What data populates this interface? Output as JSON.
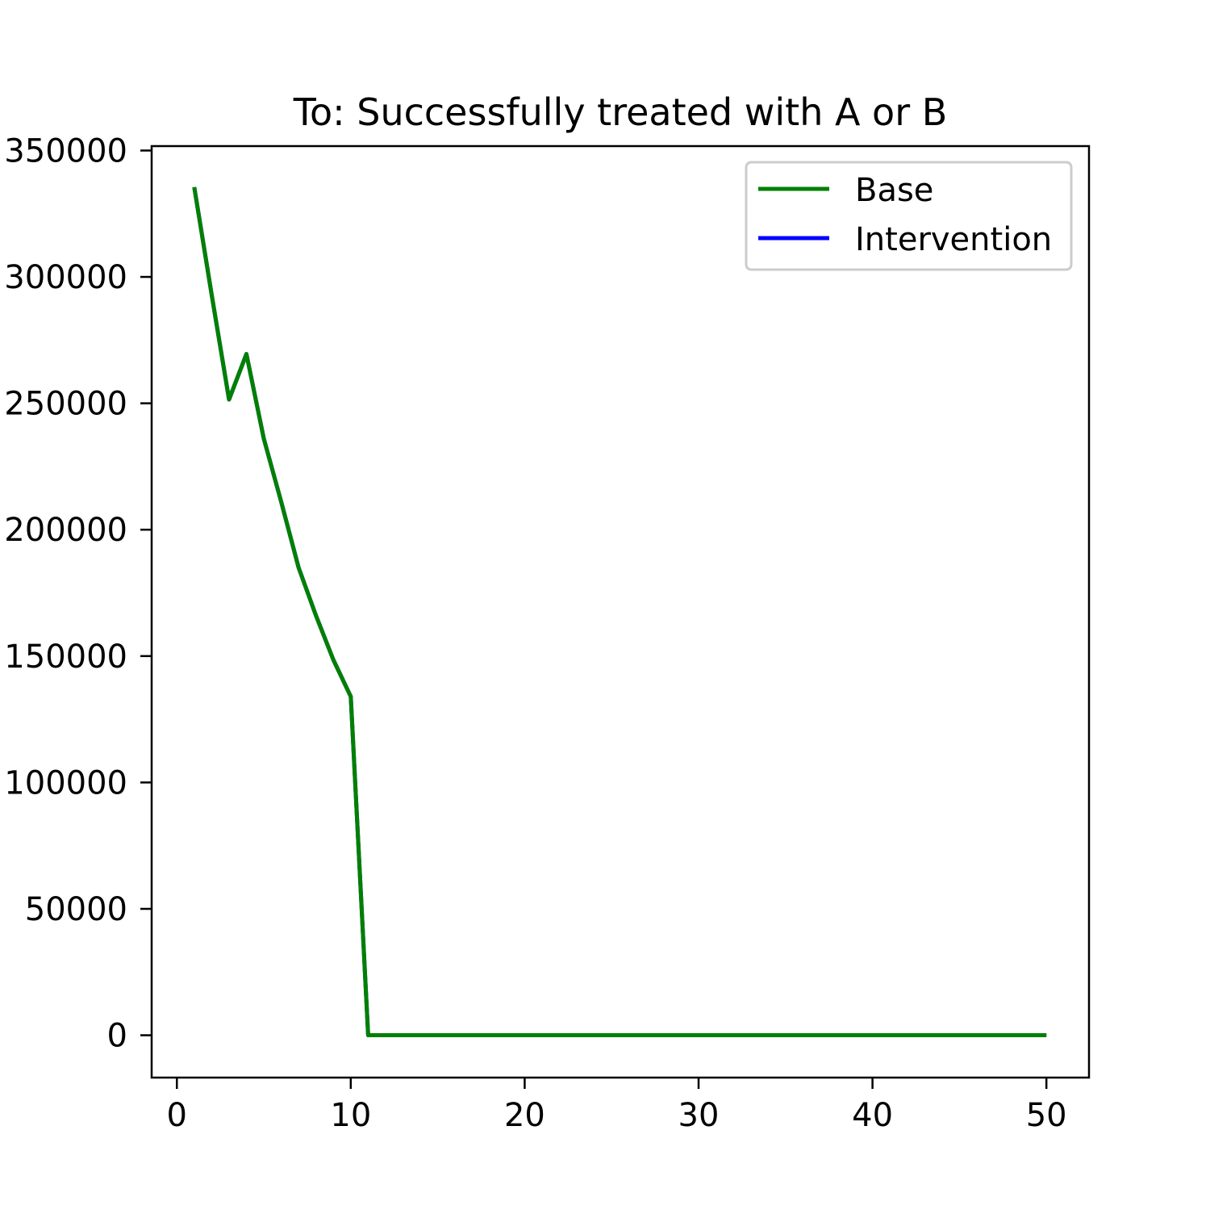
{
  "chart_data": {
    "type": "line",
    "title": "To: Successfully treated with A or B",
    "xlabel": "",
    "ylabel": "",
    "xlim": [
      -1.45,
      52.45
    ],
    "ylim": [
      -16750,
      351750
    ],
    "x_ticks": [
      0,
      10,
      20,
      30,
      40,
      50
    ],
    "y_ticks": [
      0,
      50000,
      100000,
      150000,
      200000,
      250000,
      300000,
      350000
    ],
    "grid": false,
    "legend_position": "top-right",
    "series": [
      {
        "name": "Base",
        "color": "#008000",
        "x": [
          1,
          2,
          3,
          4,
          5,
          6,
          7,
          8,
          9,
          10,
          11,
          12,
          13,
          14,
          15,
          16,
          17,
          18,
          19,
          20,
          21,
          22,
          23,
          24,
          25,
          26,
          27,
          28,
          29,
          30,
          31,
          32,
          33,
          34,
          35,
          36,
          37,
          38,
          39,
          40,
          41,
          42,
          43,
          44,
          45,
          46,
          47,
          48,
          49,
          50
        ],
        "y": [
          335500,
          293000,
          251500,
          269500,
          236000,
          211000,
          185000,
          166000,
          148500,
          134000,
          0,
          0,
          0,
          0,
          0,
          0,
          0,
          0,
          0,
          0,
          0,
          0,
          0,
          0,
          0,
          0,
          0,
          0,
          0,
          0,
          0,
          0,
          0,
          0,
          0,
          0,
          0,
          0,
          0,
          0,
          0,
          0,
          0,
          0,
          0,
          0,
          0,
          0,
          0,
          0
        ]
      },
      {
        "name": "Intervention",
        "color": "#0000ff",
        "x": [
          1,
          2,
          3,
          4,
          5,
          6,
          7,
          8,
          9,
          10,
          11,
          12,
          13,
          14,
          15,
          16,
          17,
          18,
          19,
          20,
          21,
          22,
          23,
          24,
          25,
          26,
          27,
          28,
          29,
          30,
          31,
          32,
          33,
          34,
          35,
          36,
          37,
          38,
          39,
          40,
          41,
          42,
          43,
          44,
          45,
          46,
          47,
          48,
          49,
          50
        ],
        "y": [
          335500,
          293000,
          251500,
          269500,
          236000,
          211000,
          185000,
          166000,
          148500,
          134000,
          0,
          0,
          0,
          0,
          0,
          0,
          0,
          0,
          0,
          0,
          0,
          0,
          0,
          0,
          0,
          0,
          0,
          0,
          0,
          0,
          0,
          0,
          0,
          0,
          0,
          0,
          0,
          0,
          0,
          0,
          0,
          0,
          0,
          0,
          0,
          0,
          0,
          0,
          0,
          0
        ]
      }
    ]
  }
}
